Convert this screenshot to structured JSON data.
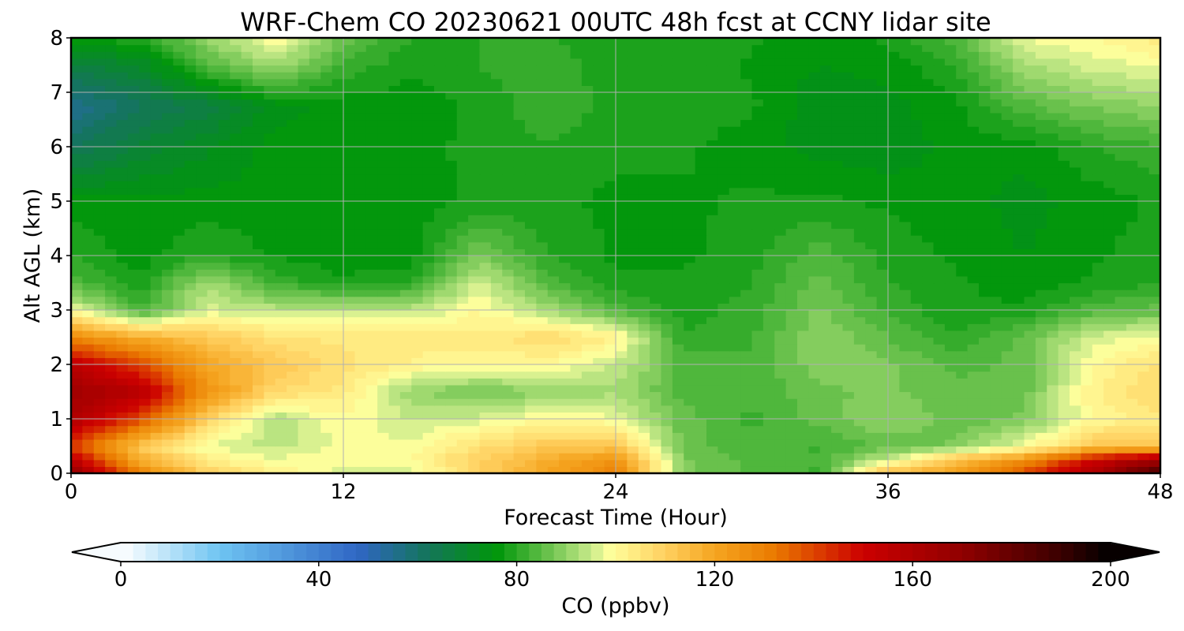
{
  "chart_data": {
    "type": "heatmap",
    "title": "WRF-Chem CO  20230621 00UTC 48h fcst at CCNY lidar site",
    "xlabel": "Forecast Time (Hour)",
    "ylabel": "Alt AGL (km)",
    "xlim": [
      0,
      48
    ],
    "ylim": [
      0,
      8
    ],
    "xticks": [
      0,
      12,
      24,
      36,
      48
    ],
    "yticks": [
      0,
      1,
      2,
      3,
      4,
      5,
      6,
      7,
      8
    ],
    "grid": true,
    "colorbar": {
      "label": "CO  (ppbv)",
      "range": [
        0,
        200
      ],
      "ticks": [
        0,
        40,
        80,
        120,
        160,
        200
      ],
      "extend": "both",
      "orientation": "horizontal",
      "colors": [
        {
          "value": 0,
          "color": "#ffffff"
        },
        {
          "value": 20,
          "color": "#6ec4f2"
        },
        {
          "value": 48,
          "color": "#2f66c4"
        },
        {
          "value": 62,
          "color": "#14755a"
        },
        {
          "value": 76,
          "color": "#00960a"
        },
        {
          "value": 86,
          "color": "#66c04a"
        },
        {
          "value": 95,
          "color": "#c8ea8a"
        },
        {
          "value": 99,
          "color": "#ffff9c"
        },
        {
          "value": 110,
          "color": "#ffd060"
        },
        {
          "value": 120,
          "color": "#f5a520"
        },
        {
          "value": 132,
          "color": "#ea7a00"
        },
        {
          "value": 150,
          "color": "#cc0000"
        },
        {
          "value": 170,
          "color": "#900000"
        },
        {
          "value": 190,
          "color": "#3a0000"
        },
        {
          "value": 200,
          "color": "#000000"
        }
      ]
    },
    "x": [
      0,
      3,
      6,
      9,
      12,
      15,
      18,
      21,
      24,
      27,
      30,
      33,
      36,
      39,
      42,
      45,
      48
    ],
    "y": [
      0,
      0.25,
      0.5,
      1,
      1.5,
      2,
      2.5,
      3,
      3.5,
      4,
      5,
      6,
      6.75,
      7.5,
      8
    ],
    "z": [
      [
        170,
        130,
        110,
        102,
        96,
        96,
        110,
        120,
        130,
        88,
        84,
        82,
        115,
        120,
        140,
        160,
        190
      ],
      [
        155,
        118,
        103,
        98,
        100,
        100,
        110,
        118,
        125,
        88,
        84,
        83,
        95,
        115,
        125,
        150,
        165
      ],
      [
        140,
        112,
        97,
        94,
        98,
        98,
        106,
        112,
        112,
        86,
        83,
        82,
        86,
        88,
        98,
        112,
        112
      ],
      [
        160,
        140,
        110,
        92,
        100,
        95,
        96,
        100,
        98,
        86,
        82,
        86,
        90,
        86,
        88,
        100,
        104
      ],
      [
        165,
        158,
        125,
        108,
        104,
        90,
        87,
        90,
        92,
        84,
        83,
        87,
        88,
        86,
        86,
        102,
        108
      ],
      [
        155,
        140,
        120,
        112,
        106,
        102,
        100,
        100,
        95,
        84,
        83,
        89,
        88,
        84,
        86,
        100,
        106
      ],
      [
        128,
        118,
        112,
        106,
        104,
        104,
        104,
        108,
        102,
        80,
        82,
        90,
        85,
        80,
        86,
        96,
        98
      ],
      [
        98,
        82,
        96,
        94,
        94,
        94,
        100,
        92,
        84,
        79,
        81,
        88,
        82,
        78,
        78,
        84,
        86
      ],
      [
        84,
        78,
        92,
        82,
        78,
        80,
        96,
        84,
        78,
        78,
        80,
        86,
        80,
        78,
        76,
        78,
        80
      ],
      [
        80,
        76,
        80,
        77,
        76,
        76,
        88,
        80,
        77,
        77,
        79,
        84,
        79,
        77,
        75,
        77,
        79
      ],
      [
        76,
        76,
        76,
        76,
        76,
        76,
        78,
        78,
        77,
        77,
        78,
        78,
        77,
        76,
        74,
        76,
        78
      ],
      [
        62,
        68,
        72,
        76,
        76,
        77,
        78,
        80,
        78,
        78,
        76,
        74,
        73,
        76,
        76,
        80,
        82
      ],
      [
        55,
        62,
        66,
        74,
        76,
        76,
        78,
        82,
        79,
        79,
        78,
        73,
        74,
        77,
        84,
        88,
        90
      ],
      [
        66,
        70,
        84,
        92,
        82,
        78,
        80,
        82,
        78,
        80,
        77,
        75,
        76,
        80,
        92,
        96,
        98
      ],
      [
        76,
        80,
        90,
        100,
        86,
        80,
        80,
        80,
        78,
        80,
        78,
        76,
        78,
        84,
        98,
        100,
        104
      ]
    ]
  }
}
